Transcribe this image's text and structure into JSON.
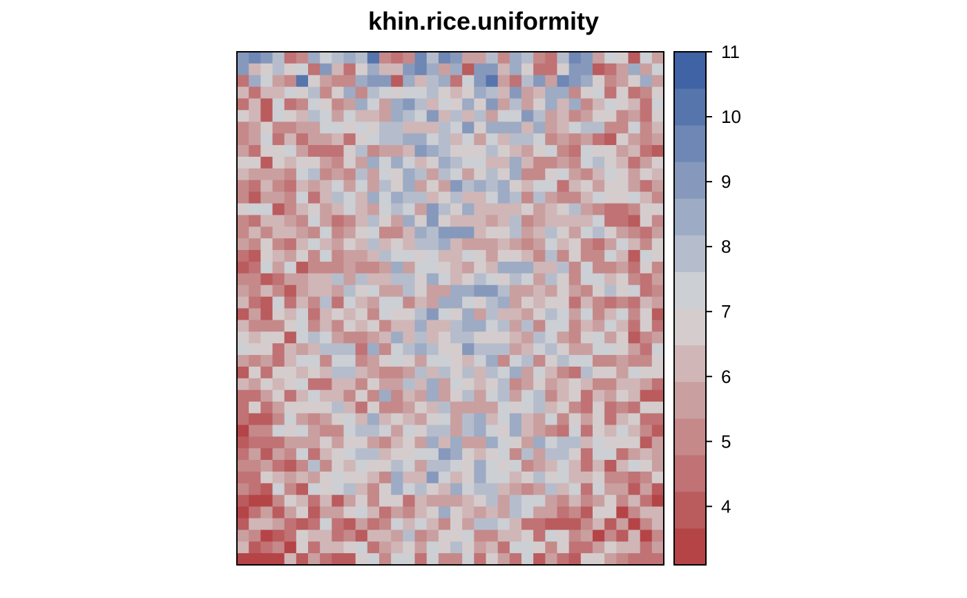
{
  "chart_data": {
    "type": "heatmap",
    "title": "khin.rice.uniformity",
    "xlabel": "",
    "ylabel": "",
    "ncols": 36,
    "nrows": 44,
    "colorbar": {
      "range": [
        3.1,
        11.0
      ],
      "ticks": [
        "4",
        "5",
        "6",
        "7",
        "8",
        "9",
        "10",
        "11"
      ],
      "tick_values": [
        4,
        5,
        6,
        7,
        8,
        9,
        10,
        11
      ],
      "levels": 14,
      "low_color": "#b2393c",
      "mid_color": "#d8d8d8",
      "high_color": "#335aa0"
    },
    "values": [
      "nLeIfDHFGGFbcHIFCEDGGJNcbDCGcbeELjfcLd",
      "nGPIGaKIDJDFKBFFfHTVeCGcGCKhHHIIJEc",
      "EJQNDBFLKBFGOPMRTCFcCfFLHIDIHGDcdeEIF"
    ]
  }
}
